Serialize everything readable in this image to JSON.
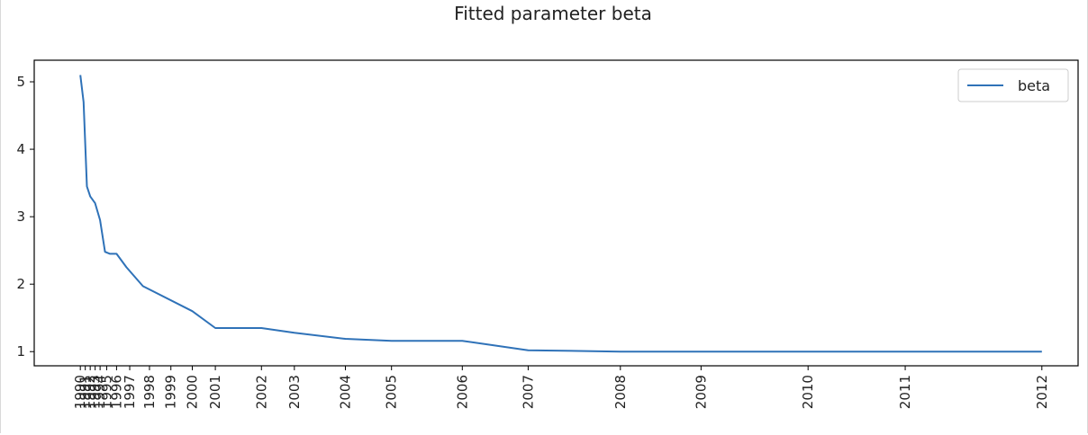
{
  "chart_data": {
    "type": "line",
    "title": "Fitted parameter beta",
    "xlabel": "",
    "ylabel": "",
    "x_ticks": [
      "1990",
      "1991",
      "1992",
      "1993",
      "1994",
      "1995",
      "1996",
      "1997",
      "1998",
      "1999",
      "2000",
      "2001",
      "2002",
      "2003",
      "2004",
      "2005",
      "2006",
      "2007",
      "2008",
      "2009",
      "2010",
      "2011",
      "2012"
    ],
    "x_tick_values": [
      0.0,
      0.15,
      0.3,
      0.45,
      0.6,
      0.8,
      1.1,
      1.5,
      2.1,
      2.75,
      3.4,
      4.1,
      5.5,
      6.5,
      8.05,
      9.45,
      11.6,
      13.6,
      16.4,
      18.85,
      22.1,
      25.05,
      29.2
    ],
    "series": [
      {
        "name": "beta",
        "color": "#2f72b8",
        "x": [
          0.0,
          0.1,
          0.2,
          0.3,
          0.45,
          0.6,
          0.75,
          0.9,
          1.1,
          1.4,
          1.9,
          3.4,
          4.1,
          5.5,
          6.5,
          8.05,
          9.45,
          11.6,
          13.6,
          16.4,
          18.85,
          22.1,
          25.05,
          29.2
        ],
        "y": [
          5.1,
          4.7,
          3.45,
          3.3,
          3.2,
          2.95,
          2.48,
          2.45,
          2.45,
          2.25,
          1.97,
          1.6,
          1.35,
          1.35,
          1.28,
          1.19,
          1.16,
          1.16,
          1.02,
          1.0,
          1.0,
          1.0,
          1.0,
          1.0
        ]
      }
    ],
    "y_ticks": [
      1,
      2,
      3,
      4,
      5
    ],
    "xlim": [
      -1.4,
      30.3
    ],
    "ylim": [
      0.79,
      5.32
    ],
    "grid": false,
    "legend_position": "top-right"
  }
}
